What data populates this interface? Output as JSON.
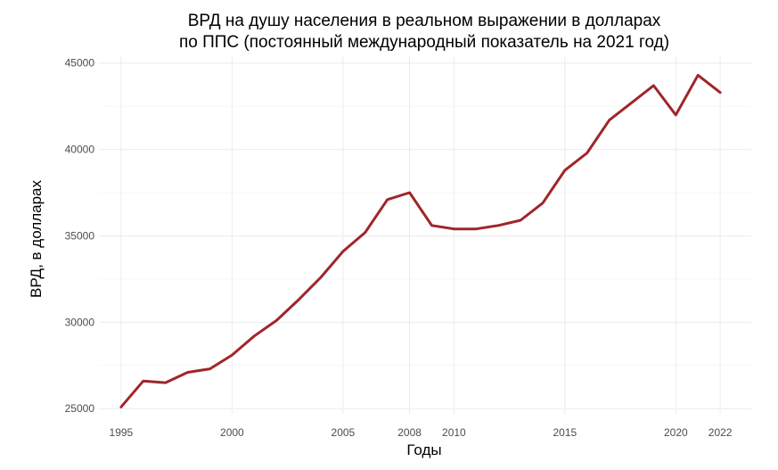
{
  "chart_data": {
    "type": "line",
    "title_lines": [
      "ВРД на душу населения в реальном выражении в долларах",
      "по ППС (постоянный международный показатель на 2021 год)"
    ],
    "xlabel": "Годы",
    "ylabel": "ВРД, в долларах",
    "xlim": [
      1994,
      2023.4
    ],
    "ylim": [
      24700,
      45400
    ],
    "x_ticks": [
      1995,
      2000,
      2005,
      2008,
      2010,
      2015,
      2020,
      2022
    ],
    "y_ticks": [
      25000,
      30000,
      35000,
      40000,
      45000
    ],
    "grid": true,
    "line_color": "#a0252a",
    "series": [
      {
        "x": [
          1995,
          1996,
          1997,
          1998,
          1999,
          2000,
          2001,
          2002,
          2003,
          2004,
          2005,
          2006,
          2007,
          2008,
          2009,
          2010,
          2011,
          2012,
          2013,
          2014,
          2015,
          2016,
          2017,
          2018,
          2019,
          2020,
          2021,
          2022
        ],
        "values": [
          25100,
          26600,
          26500,
          27100,
          27300,
          28100,
          29200,
          30100,
          31300,
          32600,
          34100,
          35200,
          37100,
          37500,
          35600,
          35400,
          35400,
          35600,
          35900,
          36900,
          38800,
          39800,
          41700,
          42700,
          43700,
          42000,
          44300,
          43300
        ]
      }
    ]
  }
}
